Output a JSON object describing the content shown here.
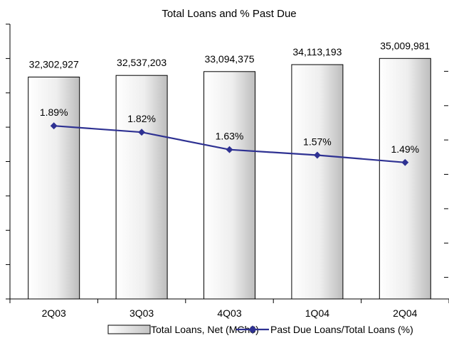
{
  "chart_data": {
    "type": "bar",
    "title": "Total Loans and % Past Due",
    "categories": [
      "2Q03",
      "3Q03",
      "4Q03",
      "1Q04",
      "2Q04"
    ],
    "series": [
      {
        "name": "Total Loans, Net (MCh$)",
        "type": "bar",
        "axis": "left",
        "values": [
          32302927,
          32537203,
          33094375,
          34113193,
          35009981
        ],
        "labels": [
          "32,302,927",
          "32,537,203",
          "33,094,375",
          "34,113,193",
          "35,009,981"
        ]
      },
      {
        "name": "Past Due Loans/Total Loans (%)",
        "type": "line",
        "axis": "right",
        "values": [
          1.89,
          1.82,
          1.63,
          1.57,
          1.49
        ],
        "labels": [
          "1.89%",
          "1.82%",
          "1.63%",
          "1.57%",
          "1.49%"
        ]
      }
    ],
    "ylim_left": [
      0,
      40000000
    ],
    "ylim_right": [
      0.0,
      3.0
    ],
    "grid": false,
    "legend_position": "bottom",
    "colors": {
      "line": "#2e3192",
      "bar_fill_light": "#ffffff",
      "bar_fill_dark": "#c8c8c8",
      "bar_stroke": "#000000",
      "axis": "#000000"
    }
  }
}
